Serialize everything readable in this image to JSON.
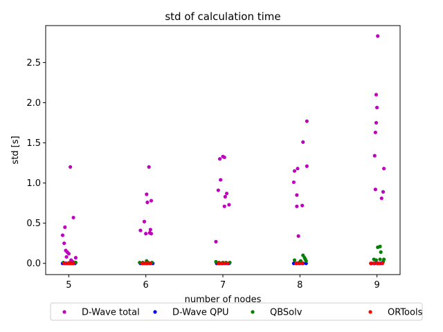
{
  "chart_data": {
    "type": "scatter",
    "title": "std of calculation time",
    "xlabel": "number of nodes",
    "ylabel": "std [s]",
    "xlim": [
      4.7,
      9.3
    ],
    "ylim": [
      -0.14,
      2.96
    ],
    "xticks": [
      5,
      6,
      7,
      8,
      9
    ],
    "yticks": [
      0.0,
      0.5,
      1.0,
      1.5,
      2.0,
      2.5
    ],
    "ytick_labels": [
      "0.0",
      "0.5",
      "1.0",
      "1.5",
      "2.0",
      "2.5"
    ],
    "grid": false,
    "legend_position": "below-plot",
    "series": [
      {
        "name": "D-Wave total",
        "color": "#bf00bf",
        "points": [
          [
            5.02,
            1.2
          ],
          [
            5.06,
            0.57
          ],
          [
            4.95,
            0.45
          ],
          [
            4.92,
            0.35
          ],
          [
            4.94,
            0.25
          ],
          [
            4.96,
            0.16
          ],
          [
            4.98,
            0.14
          ],
          [
            5.0,
            0.12
          ],
          [
            4.97,
            0.08
          ],
          [
            5.09,
            0.07
          ],
          [
            5.03,
            0.04
          ],
          [
            5.05,
            0.02
          ],
          [
            6.04,
            1.2
          ],
          [
            6.01,
            0.86
          ],
          [
            6.07,
            0.78
          ],
          [
            6.02,
            0.76
          ],
          [
            5.98,
            0.52
          ],
          [
            6.06,
            0.42
          ],
          [
            5.93,
            0.41
          ],
          [
            6.05,
            0.38
          ],
          [
            6.0,
            0.37
          ],
          [
            6.07,
            0.37
          ],
          [
            7.0,
            1.33
          ],
          [
            6.96,
            1.3
          ],
          [
            7.02,
            1.32
          ],
          [
            6.97,
            1.04
          ],
          [
            6.94,
            0.91
          ],
          [
            7.05,
            0.87
          ],
          [
            7.03,
            0.83
          ],
          [
            7.08,
            0.73
          ],
          [
            7.02,
            0.71
          ],
          [
            6.91,
            0.27
          ],
          [
            8.09,
            1.77
          ],
          [
            8.04,
            1.51
          ],
          [
            8.09,
            1.21
          ],
          [
            7.97,
            1.18
          ],
          [
            7.93,
            1.15
          ],
          [
            7.92,
            1.01
          ],
          [
            7.96,
            0.85
          ],
          [
            7.96,
            0.71
          ],
          [
            8.03,
            0.72
          ],
          [
            7.98,
            0.34
          ],
          [
            9.01,
            2.83
          ],
          [
            8.99,
            2.1
          ],
          [
            9.0,
            1.94
          ],
          [
            8.99,
            1.75
          ],
          [
            8.98,
            1.63
          ],
          [
            8.97,
            1.34
          ],
          [
            9.09,
            1.18
          ],
          [
            8.98,
            0.92
          ],
          [
            9.08,
            0.89
          ],
          [
            9.06,
            0.81
          ]
        ]
      },
      {
        "name": "D-Wave QPU",
        "color": "#0000ff",
        "points": [
          [
            4.92,
            0.0
          ],
          [
            4.96,
            0.0
          ],
          [
            5.0,
            0.0
          ],
          [
            5.04,
            0.0
          ],
          [
            5.08,
            0.0
          ],
          [
            5.93,
            0.0
          ],
          [
            5.97,
            0.0
          ],
          [
            6.01,
            0.0
          ],
          [
            6.05,
            0.0
          ],
          [
            6.09,
            0.0
          ],
          [
            6.92,
            0.0
          ],
          [
            6.96,
            0.0
          ],
          [
            7.0,
            0.0
          ],
          [
            7.04,
            0.0
          ],
          [
            7.08,
            0.0
          ],
          [
            7.92,
            0.0
          ],
          [
            7.96,
            0.0
          ],
          [
            8.0,
            0.0
          ],
          [
            8.04,
            0.0
          ],
          [
            8.08,
            0.0
          ],
          [
            8.93,
            0.0
          ],
          [
            8.97,
            0.0
          ],
          [
            9.01,
            0.0
          ],
          [
            9.05,
            0.0
          ]
        ]
      },
      {
        "name": "QBSolv",
        "color": "#008000",
        "points": [
          [
            4.93,
            0.01
          ],
          [
            5.01,
            0.01
          ],
          [
            5.07,
            0.01
          ],
          [
            5.09,
            0.01
          ],
          [
            5.92,
            0.01
          ],
          [
            5.96,
            0.01
          ],
          [
            6.01,
            0.03
          ],
          [
            6.03,
            0.01
          ],
          [
            6.08,
            0.01
          ],
          [
            6.91,
            0.02
          ],
          [
            6.95,
            0.01
          ],
          [
            7.0,
            0.01
          ],
          [
            7.04,
            0.01
          ],
          [
            7.09,
            0.01
          ],
          [
            7.93,
            0.04
          ],
          [
            7.99,
            0.01
          ],
          [
            8.01,
            0.03
          ],
          [
            8.04,
            0.1
          ],
          [
            8.06,
            0.07
          ],
          [
            8.07,
            0.05
          ],
          [
            8.08,
            0.03
          ],
          [
            8.02,
            0.01
          ],
          [
            8.96,
            0.05
          ],
          [
            8.99,
            0.04
          ],
          [
            9.01,
            0.2
          ],
          [
            9.04,
            0.21
          ],
          [
            9.05,
            0.14
          ],
          [
            9.04,
            0.05
          ],
          [
            9.09,
            0.05
          ],
          [
            9.08,
            0.02
          ]
        ]
      },
      {
        "name": "ORTools",
        "color": "#ff0000",
        "points": [
          [
            4.94,
            0.0
          ],
          [
            4.98,
            0.0
          ],
          [
            5.01,
            0.0
          ],
          [
            5.03,
            0.0
          ],
          [
            5.06,
            0.0
          ],
          [
            5.95,
            0.0
          ],
          [
            5.99,
            0.0
          ],
          [
            6.02,
            0.0
          ],
          [
            6.06,
            0.0
          ],
          [
            6.94,
            0.0
          ],
          [
            6.98,
            0.0
          ],
          [
            7.02,
            0.0
          ],
          [
            7.06,
            0.0
          ],
          [
            7.95,
            0.0
          ],
          [
            7.99,
            0.0
          ],
          [
            8.03,
            0.0
          ],
          [
            8.92,
            0.0
          ],
          [
            8.96,
            0.0
          ],
          [
            9.0,
            0.0
          ],
          [
            9.03,
            0.0
          ],
          [
            9.07,
            0.0
          ]
        ]
      }
    ]
  }
}
